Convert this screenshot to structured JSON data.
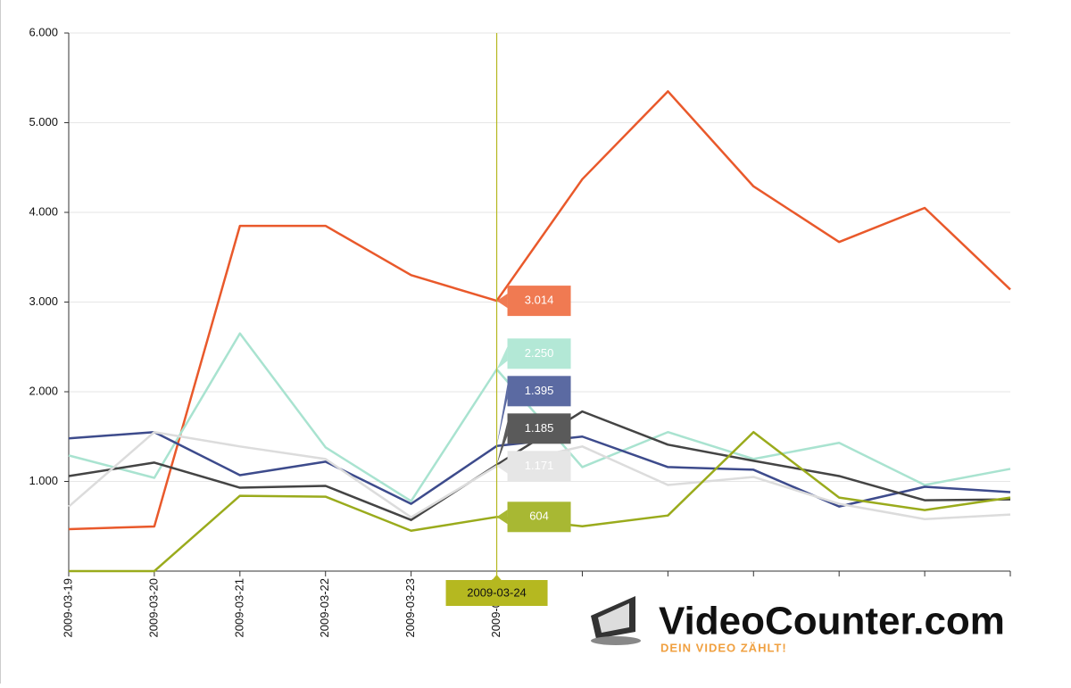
{
  "chart_data": {
    "type": "line",
    "categories": [
      "2009-03-19",
      "2009-03-20",
      "2009-03-21",
      "2009-03-22",
      "2009-03-23",
      "2009-03-24",
      null,
      null,
      null,
      null,
      null,
      null
    ],
    "ylim": [
      0,
      6000
    ],
    "yticks": [
      {
        "value": 1000,
        "label": "1.000"
      },
      {
        "value": 2000,
        "label": "2.000"
      },
      {
        "value": 3000,
        "label": "3.000"
      },
      {
        "value": 4000,
        "label": "4.000"
      },
      {
        "value": 5000,
        "label": "5.000"
      },
      {
        "value": 6000,
        "label": "6.000"
      }
    ],
    "grid": true,
    "tooltip": {
      "label": "2009-03-24",
      "color": "#b5b820"
    },
    "series": [
      {
        "color": "#e9592b",
        "label_color": "#f07a52",
        "values": [
          468,
          498,
          3850,
          3850,
          3300,
          3014,
          4370,
          5350,
          4290,
          3670,
          4050,
          3140
        ],
        "value_labels": [
          null,
          null,
          null,
          null,
          null,
          "3.014",
          null,
          null,
          null,
          null,
          null,
          null
        ]
      },
      {
        "color": "#a9e3d0",
        "label_color": "#b3e8d6",
        "values": [
          1290,
          1040,
          2650,
          1380,
          780,
          2250,
          1160,
          1550,
          1250,
          1430,
          960,
          1140
        ],
        "value_labels": [
          null,
          null,
          null,
          null,
          null,
          "2.250",
          null,
          null,
          null,
          null,
          null,
          null
        ]
      },
      {
        "color": "#3d4b8c",
        "label_color": "#5b6aa2",
        "values": [
          1480,
          1550,
          1070,
          1220,
          750,
          1395,
          1500,
          1160,
          1130,
          720,
          940,
          880
        ],
        "value_labels": [
          null,
          null,
          null,
          null,
          null,
          "1.395",
          null,
          null,
          null,
          null,
          null,
          null
        ]
      },
      {
        "color": "#444444",
        "label_color": "#5a5a5a",
        "values": [
          1060,
          1210,
          930,
          950,
          570,
          1185,
          1780,
          1410,
          1230,
          1060,
          790,
          800
        ],
        "value_labels": [
          null,
          null,
          null,
          null,
          null,
          "1.185",
          null,
          null,
          null,
          null,
          null,
          null
        ]
      },
      {
        "color": "#dcdcdc",
        "label_color": "#e6e6e6",
        "values": [
          720,
          1550,
          1390,
          1250,
          600,
          1171,
          1390,
          960,
          1050,
          750,
          580,
          630
        ],
        "value_labels": [
          null,
          null,
          null,
          null,
          null,
          "1.171",
          null,
          null,
          null,
          null,
          null,
          null
        ]
      },
      {
        "color": "#9aab1c",
        "label_color": "#a8b833",
        "values": [
          0,
          0,
          840,
          830,
          450,
          604,
          500,
          620,
          1550,
          820,
          680,
          820
        ]
      }
    ]
  },
  "logo": {
    "name": "VideoCounter.com",
    "slogan": "DEIN VIDEO ZÄHLT!"
  }
}
